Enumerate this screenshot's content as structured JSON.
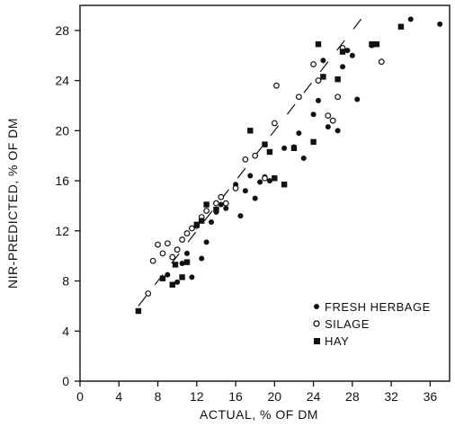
{
  "chart_data": {
    "type": "scatter",
    "title": "",
    "xlabel": "ACTUAL, % OF DM",
    "ylabel": "NIR-PREDICTED, % OF DM",
    "xlim": [
      0,
      38
    ],
    "ylim": [
      0,
      30
    ],
    "xticks": [
      0,
      4,
      8,
      12,
      16,
      20,
      24,
      28,
      32,
      36
    ],
    "yticks": [
      0,
      4,
      8,
      12,
      16,
      20,
      24,
      28
    ],
    "grid": false,
    "legend_position": "bottom-right",
    "reference_line": {
      "style": "dashed",
      "from": [
        6,
        6
      ],
      "to": [
        29,
        29
      ]
    },
    "series": [
      {
        "name": "FRESH HERBAGE",
        "marker": "filled-circle",
        "points": [
          [
            9,
            8.5
          ],
          [
            10,
            7.9
          ],
          [
            10.5,
            9.4
          ],
          [
            11,
            10.2
          ],
          [
            11.5,
            8.3
          ],
          [
            12.5,
            9.8
          ],
          [
            13,
            11.1
          ],
          [
            13.5,
            12.7
          ],
          [
            14,
            13.5
          ],
          [
            14.5,
            14.1
          ],
          [
            15,
            13.8
          ],
          [
            16,
            15.7
          ],
          [
            16.5,
            13.2
          ],
          [
            17,
            15.2
          ],
          [
            17.5,
            16.4
          ],
          [
            18,
            14.6
          ],
          [
            18.5,
            15.9
          ],
          [
            19,
            16.3
          ],
          [
            19.5,
            16.0
          ],
          [
            21,
            18.6
          ],
          [
            22,
            18.7
          ],
          [
            22.5,
            19.8
          ],
          [
            23,
            17.8
          ],
          [
            24,
            21.3
          ],
          [
            24.5,
            22.4
          ],
          [
            25,
            25.6
          ],
          [
            25.5,
            20.3
          ],
          [
            26.5,
            20.0
          ],
          [
            27,
            25.1
          ],
          [
            27.5,
            26.4
          ],
          [
            28,
            26.0
          ],
          [
            28.5,
            22.5
          ],
          [
            30,
            26.8
          ],
          [
            34,
            28.9
          ],
          [
            37,
            28.5
          ]
        ]
      },
      {
        "name": "SILAGE",
        "marker": "open-circle",
        "points": [
          [
            7,
            7
          ],
          [
            7.5,
            9.6
          ],
          [
            8,
            10.9
          ],
          [
            8.5,
            10.2
          ],
          [
            9,
            11.0
          ],
          [
            9.5,
            9.9
          ],
          [
            10,
            10.5
          ],
          [
            10.5,
            11.3
          ],
          [
            11,
            11.8
          ],
          [
            11.5,
            12.2
          ],
          [
            12,
            12.4
          ],
          [
            12.5,
            13.1
          ],
          [
            13,
            13.6
          ],
          [
            14,
            14.2
          ],
          [
            14.5,
            14.7
          ],
          [
            15,
            14.2
          ],
          [
            16,
            15.4
          ],
          [
            17,
            17.7
          ],
          [
            18,
            18.0
          ],
          [
            19,
            16.2
          ],
          [
            20,
            20.6
          ],
          [
            20.2,
            23.6
          ],
          [
            22.5,
            22.7
          ],
          [
            24,
            25.3
          ],
          [
            24.5,
            24.0
          ],
          [
            25.5,
            21.2
          ],
          [
            26,
            20.8
          ],
          [
            26.5,
            22.7
          ],
          [
            27,
            26.6
          ],
          [
            31,
            25.5
          ]
        ]
      },
      {
        "name": "HAY",
        "marker": "filled-square",
        "points": [
          [
            6,
            5.6
          ],
          [
            8.5,
            8.2
          ],
          [
            9.5,
            7.7
          ],
          [
            9.8,
            9.3
          ],
          [
            10.5,
            8.3
          ],
          [
            11,
            9.5
          ],
          [
            12,
            12.5
          ],
          [
            12.5,
            12.8
          ],
          [
            13,
            14.1
          ],
          [
            14,
            13.7
          ],
          [
            17.5,
            20.0
          ],
          [
            19,
            18.9
          ],
          [
            19.5,
            18.3
          ],
          [
            20,
            16.2
          ],
          [
            21,
            15.7
          ],
          [
            22,
            18.6
          ],
          [
            24,
            19.1
          ],
          [
            24.5,
            26.9
          ],
          [
            25,
            24.3
          ],
          [
            26.5,
            24.1
          ],
          [
            27,
            26.3
          ],
          [
            30,
            26.9
          ],
          [
            30.5,
            26.9
          ],
          [
            33,
            28.3
          ]
        ]
      }
    ]
  }
}
